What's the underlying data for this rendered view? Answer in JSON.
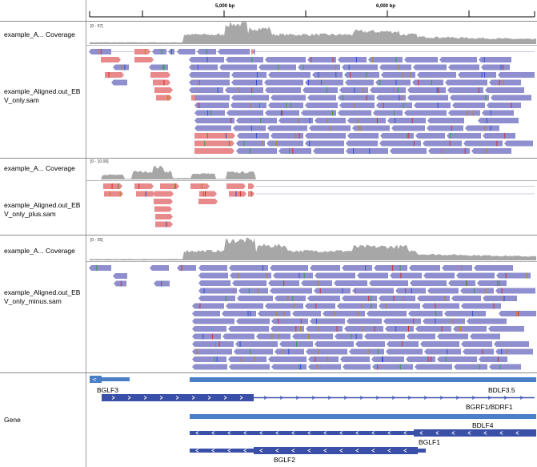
{
  "ruler": {
    "labels": [
      "5,000 bp",
      "6,000 bp"
    ]
  },
  "tracks": [
    {
      "coverage_label": "example_A... Coverage",
      "scale": "[0 - 57]",
      "alignment_label_1": "example_Aligned.out_EB",
      "alignment_label_2": "V_only.sam"
    },
    {
      "coverage_label": "example_A... Coverage",
      "scale": "[0 - 10.00]",
      "alignment_label_1": "example_Aligned.out_EB",
      "alignment_label_2": "V_only_plus.sam"
    },
    {
      "coverage_label": "example_A... Coverage",
      "scale": "[0 - 55]",
      "alignment_label_1": "example_Aligned.out_EB",
      "alignment_label_2": "V_only_minus.sam"
    }
  ],
  "gene_track": {
    "label": "Gene",
    "genes": [
      "BGLF3",
      "BDLF3.5",
      "BGRF1/BDRF1",
      "BDLF4",
      "BGLF1",
      "BGLF2"
    ]
  },
  "colors": {
    "read_forward": "#e8898c",
    "read_reverse": "#8f8fcf",
    "coverage": "#a7a7a7",
    "gene": "#3a4fa8",
    "gene_light": "#4a7fc8"
  }
}
